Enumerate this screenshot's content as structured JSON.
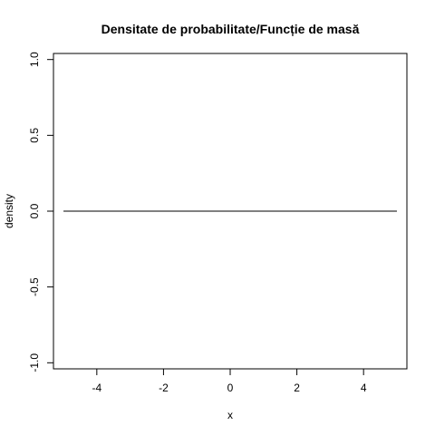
{
  "chart_data": {
    "type": "line",
    "title": "Densitate de probabilitate/Funcție de masă",
    "xlabel": "x",
    "ylabel": "density",
    "xlim": [
      -5.3,
      5.3
    ],
    "ylim": [
      -1.04,
      1.04
    ],
    "x_ticks": [
      -4,
      -2,
      0,
      2,
      4
    ],
    "y_ticks": [
      -1.0,
      -0.5,
      0.0,
      0.5,
      1.0
    ],
    "x_tick_labels": [
      "-4",
      "-2",
      "0",
      "2",
      "4"
    ],
    "y_tick_labels": [
      "-1.0",
      "-0.5",
      "0.0",
      "0.5",
      "1.0"
    ],
    "series": [
      {
        "x": [
          -5,
          5
        ],
        "y": [
          0,
          0
        ],
        "color": "#000000"
      }
    ],
    "grid": false,
    "legend": "none"
  }
}
